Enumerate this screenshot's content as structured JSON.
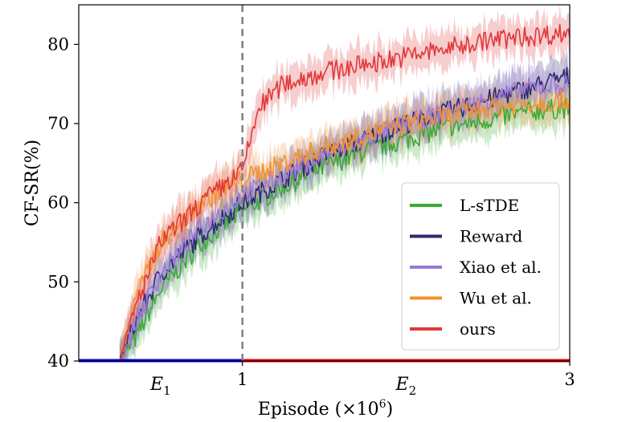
{
  "chart_data": {
    "type": "line",
    "title": "",
    "xlabel": "Episode (×10",
    "xlabel_exp": "6",
    "xlabel_close": ")",
    "ylabel": "CF-SR(%)",
    "xlim": [
      0,
      3
    ],
    "ylim": [
      40,
      85
    ],
    "x_ticks": [
      1,
      3
    ],
    "x_tick_labels": [
      "1",
      "3"
    ],
    "y_ticks": [
      40,
      50,
      60,
      70,
      80
    ],
    "y_tick_labels": [
      "40",
      "50",
      "60",
      "70",
      "80"
    ],
    "phase_boundary": 1,
    "phases": [
      {
        "letter": "E",
        "sub": "1",
        "x_from": 0,
        "x_to": 1,
        "color": "#0000ee"
      },
      {
        "letter": "E",
        "sub": "2",
        "x_from": 1,
        "x_to": 3,
        "color": "#ee0000"
      }
    ],
    "legend_position": "lower-right",
    "series": [
      {
        "name": "L-sTDE",
        "color": "#3aaa35",
        "x": [
          0.25,
          0.35,
          0.5,
          0.75,
          1.0,
          1.25,
          1.5,
          1.75,
          2.0,
          2.25,
          2.5,
          2.75,
          3.0
        ],
        "values": [
          40,
          43,
          49,
          55,
          59,
          62,
          64.5,
          66.5,
          68,
          69.5,
          70.5,
          71.5,
          72
        ]
      },
      {
        "name": "Reward",
        "color": "#2e2a6e",
        "x": [
          0.25,
          0.35,
          0.5,
          0.75,
          1.0,
          1.25,
          1.5,
          1.75,
          2.0,
          2.25,
          2.5,
          2.75,
          3.0
        ],
        "values": [
          40,
          45,
          51,
          56,
          60,
          63,
          66,
          68,
          70,
          71.5,
          73,
          74.5,
          76
        ]
      },
      {
        "name": "Xiao et al.",
        "color": "#9b79d6",
        "x": [
          0.25,
          0.35,
          0.5,
          0.75,
          1.0,
          1.25,
          1.5,
          1.75,
          2.0,
          2.25,
          2.5,
          2.75,
          3.0
        ],
        "values": [
          40,
          45,
          51,
          57,
          61,
          63.5,
          66,
          68,
          70,
          71.5,
          73,
          74.5,
          75
        ]
      },
      {
        "name": "Wu et al.",
        "color": "#f5922d",
        "x": [
          0.25,
          0.35,
          0.5,
          0.75,
          1.0,
          1.25,
          1.5,
          1.75,
          2.0,
          2.25,
          2.5,
          2.75,
          3.0
        ],
        "values": [
          40,
          48,
          55,
          60,
          63,
          65,
          67,
          68.5,
          70,
          71,
          72,
          72.5,
          73
        ]
      },
      {
        "name": "ours",
        "color": "#e0383a",
        "x": [
          0.25,
          0.35,
          0.5,
          0.75,
          1.0,
          1.1,
          1.25,
          1.5,
          1.75,
          2.0,
          2.25,
          2.5,
          2.75,
          3.0
        ],
        "values": [
          40,
          47,
          55,
          60,
          64,
          72,
          75,
          76.5,
          77.5,
          78.5,
          79.5,
          80.5,
          81,
          81.5
        ]
      }
    ]
  }
}
